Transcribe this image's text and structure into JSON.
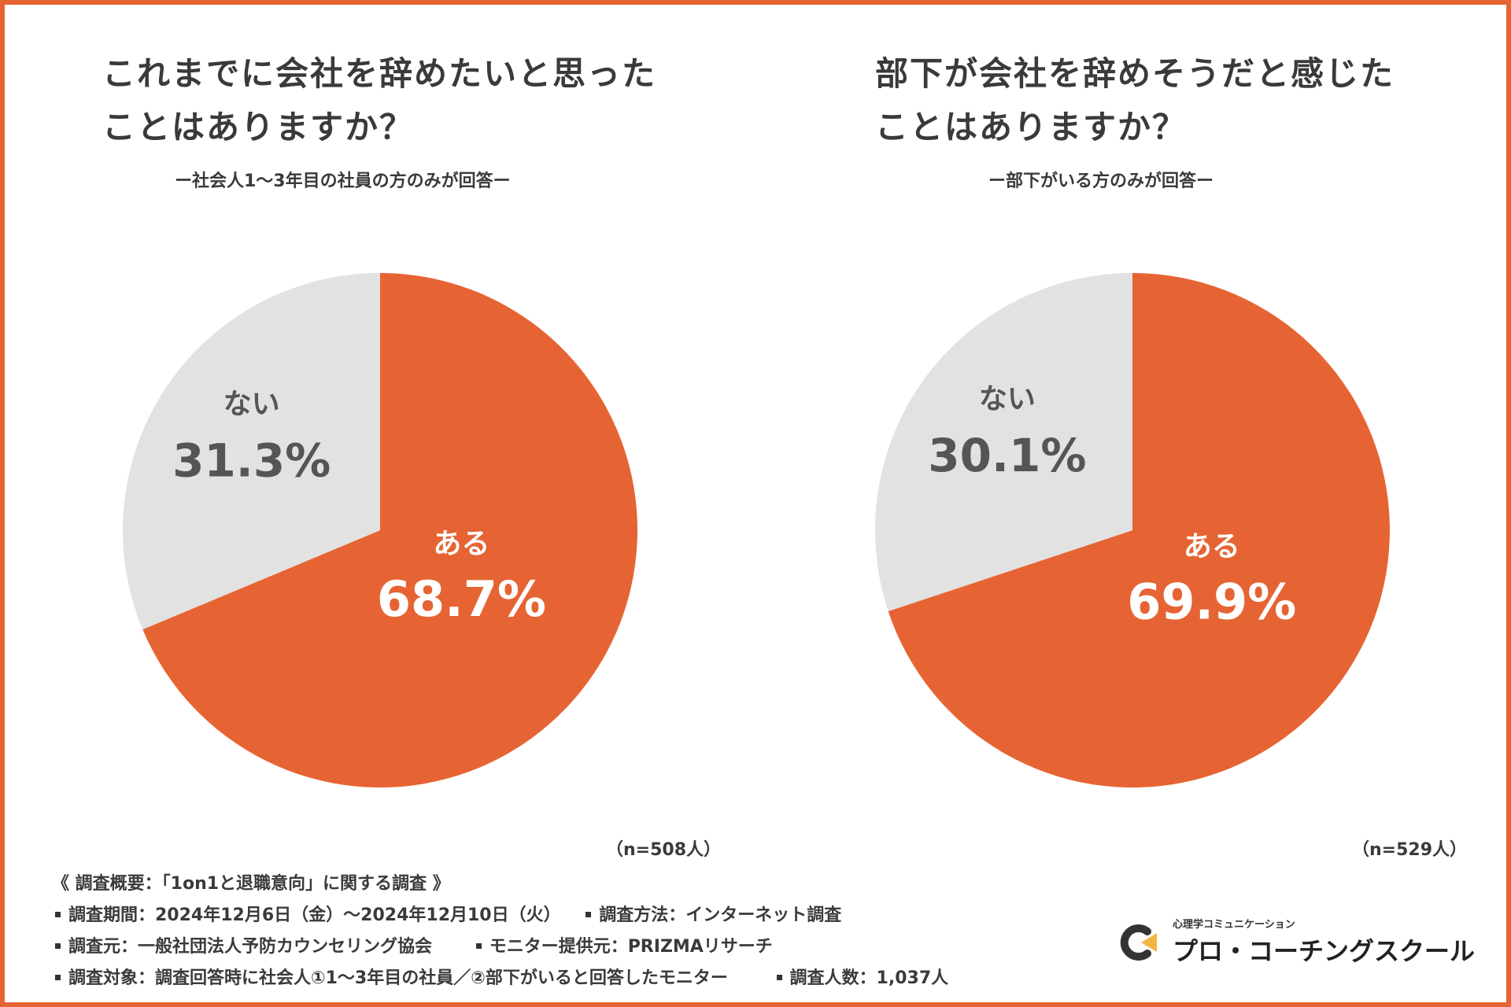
{
  "colors": {
    "accent": "#E66433",
    "secondary": "#E2E2E2",
    "frame": "#E66433"
  },
  "chart_data": [
    {
      "type": "pie",
      "title": "これまでに会社を辞めたいと思ったことはありますか？",
      "title_lines": [
        "これまでに会社を辞めたいと思った",
        "ことはありますか？"
      ],
      "subtitle": "ー社会人1～3年目の社員の方のみが回答ー",
      "slices": [
        {
          "label": "ある",
          "value": 68.7,
          "display": "68.7%",
          "color": "#E66433",
          "text_color": "#ffffff"
        },
        {
          "label": "ない",
          "value": 31.3,
          "display": "31.3%",
          "color": "#E2E2E2",
          "text_color": "#555555"
        }
      ],
      "n_label": "（n=508人）"
    },
    {
      "type": "pie",
      "title": "部下が会社を辞めそうだと感じたことはありますか？",
      "title_lines": [
        "部下が会社を辞めそうだと感じた",
        "ことはありますか？"
      ],
      "subtitle": "ー部下がいる方のみが回答ー",
      "slices": [
        {
          "label": "ある",
          "value": 69.9,
          "display": "69.9%",
          "color": "#E66433",
          "text_color": "#ffffff"
        },
        {
          "label": "ない",
          "value": 30.1,
          "display": "30.1%",
          "color": "#E2E2E2",
          "text_color": "#555555"
        }
      ],
      "n_label": "（n=529人）"
    }
  ],
  "footer": {
    "heading": "《 調査概要：「1on1と退職意向」に関する調査 》",
    "period": "調査期間：2024年12月6日（金）～2024年12月10日（火）",
    "method": "調査方法：インターネット調査",
    "source": "調査元：一般社団法人予防カウンセリング協会",
    "monitor": "モニター提供元：PRIZMAリサーチ",
    "target": "調査対象：調査回答時に社会人①1～3年目の社員／②部下がいると回答したモニター",
    "count": "調査人数：1,037人"
  },
  "logo": {
    "small": "心理学コミュニケーション",
    "main": "プロ・コーチングスクール"
  }
}
